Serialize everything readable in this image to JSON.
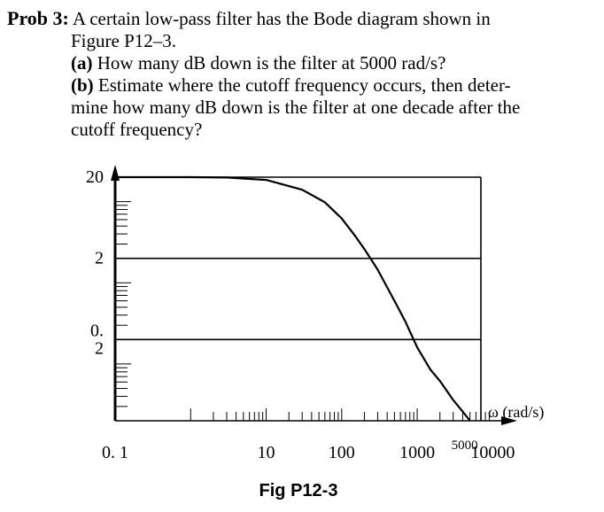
{
  "problem": {
    "label": "Prob 3:",
    "intro_line1": "A certain low-pass filter has the Bode diagram shown in",
    "intro_line2": "Figure P12–3.",
    "part_a_label": "(a)",
    "part_a_text": "How many dB down is the filter at 5000 rad/s?",
    "part_b_label": "(b)",
    "part_b_line1": "Estimate where the cutoff frequency occurs, then deter-",
    "part_b_line2": "mine how many dB down is the filter at one decade after the",
    "part_b_line3": "cutoff frequency?"
  },
  "chart_data": {
    "type": "line",
    "caption": "Fig P12-3",
    "x_scale": "log",
    "y_scale": "log",
    "xlim": [
      0.1,
      20000
    ],
    "ylim": [
      0.02,
      20
    ],
    "x_tick_labels": [
      {
        "value": 0.1,
        "label": "0. 1"
      },
      {
        "value": 10,
        "label": "10"
      },
      {
        "value": 100,
        "label": "100"
      },
      {
        "value": 1000,
        "label": "1000"
      },
      {
        "value": 10000,
        "label": "10000"
      }
    ],
    "x_annotation": {
      "value": 5000,
      "label": "5000"
    },
    "x_axis_label": "ω (rad/s)",
    "y_tick_labels": [
      {
        "value": 20,
        "label": "20"
      },
      {
        "value": 2,
        "label": "2"
      },
      {
        "value": 0.2,
        "label": "0.\n2"
      }
    ],
    "gridlines_y": [
      2,
      0.2
    ],
    "series": [
      {
        "x": [
          1,
          3,
          10,
          30,
          60,
          100,
          150,
          200,
          300,
          500,
          700,
          1000,
          1500,
          2000,
          3000,
          4000,
          5000
        ],
        "y": [
          20,
          19.8,
          18.5,
          14,
          9.8,
          6.2,
          3.8,
          2.6,
          1.45,
          0.6,
          0.33,
          0.16,
          0.085,
          0.062,
          0.036,
          0.026,
          0.02
        ]
      }
    ]
  }
}
